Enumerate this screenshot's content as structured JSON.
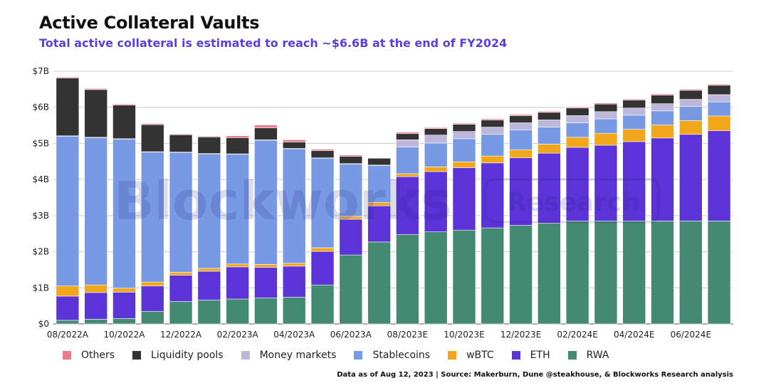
{
  "header": {
    "title": "Active Collateral Vaults",
    "subtitle": "Total active collateral is estimated to reach ~$6.6B at the end of FY2024"
  },
  "footer": {
    "source": "Data as of Aug 12, 2023 | Source: Makerburn, Dune @steakhouse, & Blockworks Research analysis"
  },
  "watermark": {
    "brand": "Blockworks",
    "tag": "Research"
  },
  "chart_data": {
    "type": "bar",
    "stacked": true,
    "ylim": [
      0,
      7
    ],
    "y_ticks": [
      0,
      1,
      2,
      3,
      4,
      5,
      6,
      7
    ],
    "y_tick_labels": [
      "$0",
      "$1B",
      "$2B",
      "$3B",
      "$4B",
      "$5B",
      "$6B",
      "$7B"
    ],
    "grid": true,
    "legend_position": "bottom",
    "categories": [
      "08/2022A",
      "09/2022A",
      "10/2022A",
      "11/2022A",
      "12/2022A",
      "01/2023A",
      "02/2023A",
      "03/2023A",
      "04/2023A",
      "05/2023A",
      "06/2023A",
      "07/2023A",
      "08/2023E",
      "09/2023E",
      "10/2023E",
      "11/2023E",
      "12/2023E",
      "01/2024E",
      "02/2024E",
      "03/2024E",
      "04/2024E",
      "05/2024E",
      "06/2024E",
      "07/2024E"
    ],
    "x_tick_labels": [
      "08/2022A",
      "",
      "10/2022A",
      "",
      "12/2022A",
      "",
      "02/2023A",
      "",
      "04/2023A",
      "",
      "06/2023A",
      "",
      "08/2023E",
      "",
      "10/2023E",
      "",
      "12/2023E",
      "",
      "02/2024E",
      "",
      "04/2024E",
      "",
      "06/2024E",
      ""
    ],
    "series": [
      {
        "name": "RWA",
        "color": "#448a72",
        "values": [
          0.1,
          0.13,
          0.15,
          0.35,
          0.62,
          0.66,
          0.69,
          0.72,
          0.74,
          1.08,
          1.91,
          2.27,
          2.48,
          2.55,
          2.6,
          2.66,
          2.73,
          2.79,
          2.85,
          2.85,
          2.85,
          2.85,
          2.85,
          2.85
        ]
      },
      {
        "name": "ETH",
        "color": "#5b33d6",
        "values": [
          0.67,
          0.74,
          0.73,
          0.7,
          0.73,
          0.8,
          0.89,
          0.85,
          0.86,
          0.93,
          0.99,
          1.0,
          1.6,
          1.67,
          1.73,
          1.8,
          1.87,
          1.94,
          2.04,
          2.1,
          2.2,
          2.3,
          2.4,
          2.5
        ]
      },
      {
        "name": "wBTC",
        "color": "#f2a71b",
        "values": [
          0.28,
          0.21,
          0.11,
          0.11,
          0.08,
          0.08,
          0.08,
          0.08,
          0.08,
          0.1,
          0.08,
          0.09,
          0.08,
          0.13,
          0.16,
          0.19,
          0.22,
          0.25,
          0.28,
          0.33,
          0.34,
          0.36,
          0.38,
          0.41
        ]
      },
      {
        "name": "Stablecoins",
        "color": "#7899e3",
        "values": [
          4.15,
          4.08,
          4.13,
          3.6,
          3.32,
          3.17,
          3.04,
          3.44,
          3.17,
          2.48,
          1.45,
          1.03,
          0.74,
          0.66,
          0.64,
          0.6,
          0.55,
          0.47,
          0.4,
          0.4,
          0.39,
          0.39,
          0.39,
          0.39
        ]
      },
      {
        "name": "Money markets",
        "color": "#bdb7dc",
        "values": [
          0.01,
          0.01,
          0.01,
          0.01,
          0.01,
          0.01,
          0.01,
          0.01,
          0.01,
          0.01,
          0.01,
          0.01,
          0.2,
          0.22,
          0.2,
          0.2,
          0.2,
          0.2,
          0.2,
          0.2,
          0.2,
          0.2,
          0.2,
          0.2
        ]
      },
      {
        "name": "Liquidity pools",
        "color": "#333333",
        "values": [
          1.6,
          1.32,
          0.93,
          0.75,
          0.48,
          0.46,
          0.45,
          0.33,
          0.18,
          0.2,
          0.2,
          0.19,
          0.17,
          0.18,
          0.2,
          0.2,
          0.2,
          0.21,
          0.21,
          0.21,
          0.22,
          0.24,
          0.25,
          0.26
        ]
      },
      {
        "name": "Others",
        "color": "#ec7a8a",
        "values": [
          0.03,
          0.03,
          0.03,
          0.03,
          0.02,
          0.02,
          0.05,
          0.08,
          0.06,
          0.04,
          0.04,
          0.01,
          0.04,
          0.03,
          0.03,
          0.03,
          0.03,
          0.03,
          0.03,
          0.03,
          0.03,
          0.03,
          0.03,
          0.03
        ]
      }
    ],
    "legend_order": [
      "Others",
      "Liquidity pools",
      "Money markets",
      "Stablecoins",
      "wBTC",
      "ETH",
      "RWA"
    ]
  }
}
